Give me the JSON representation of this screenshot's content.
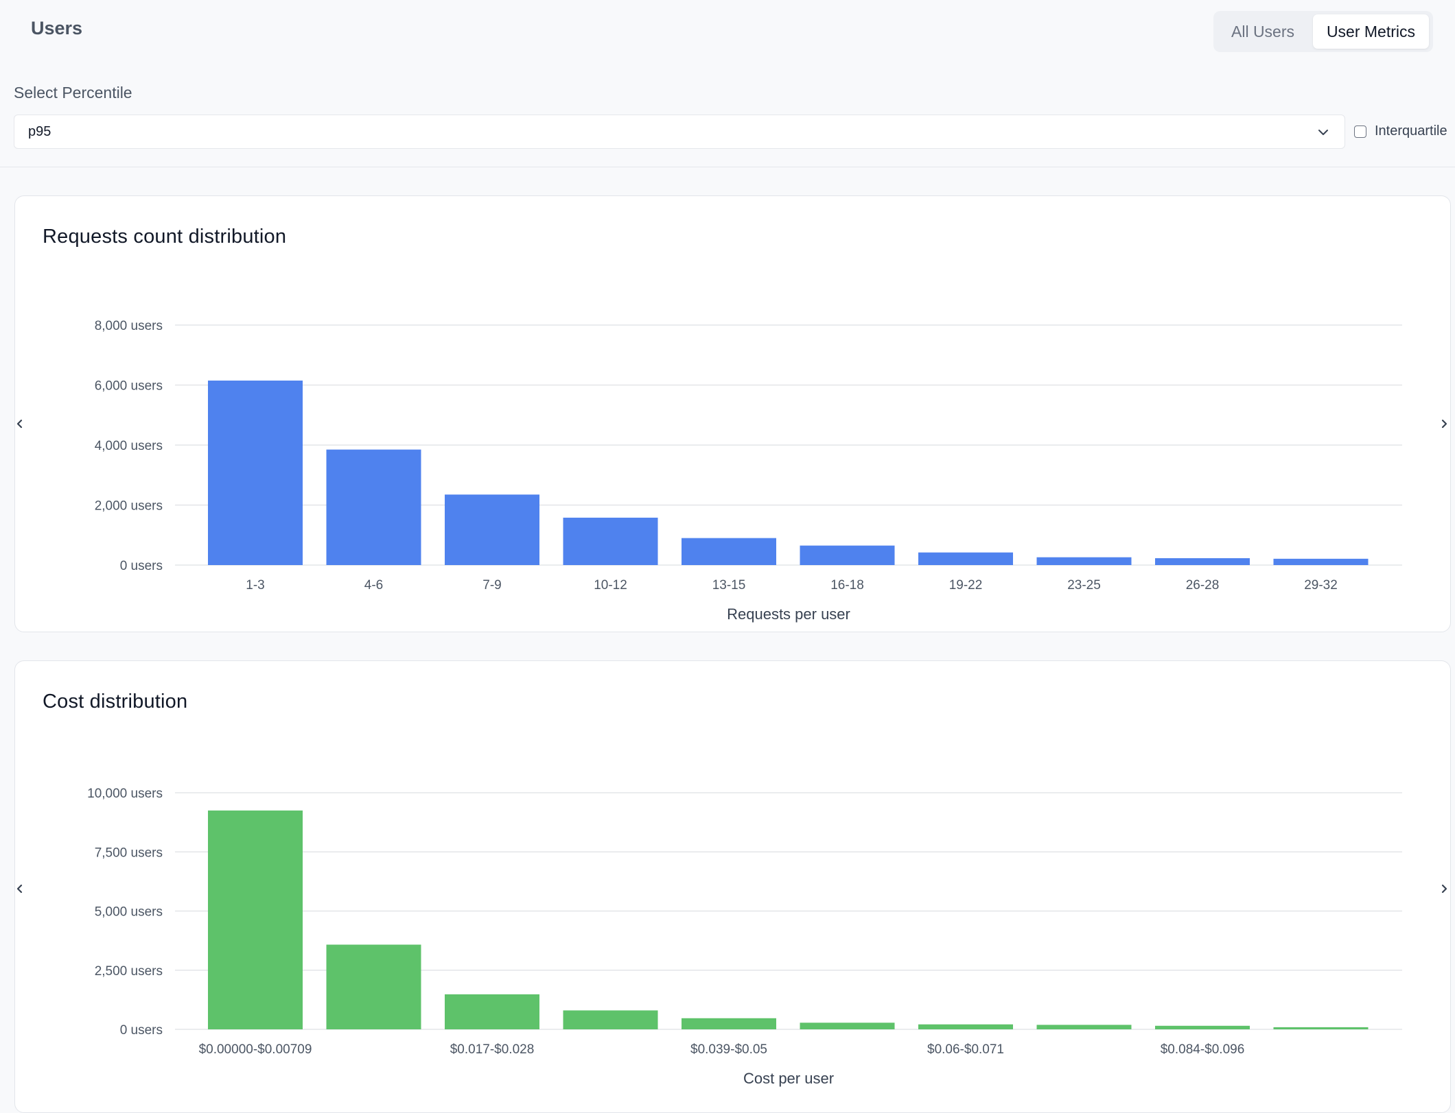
{
  "header": {
    "title": "Users"
  },
  "tabs": [
    {
      "label": "All Users",
      "active": false
    },
    {
      "label": "User Metrics",
      "active": true
    }
  ],
  "percentile": {
    "label": "Select Percentile",
    "value": "p95",
    "chevron_icon": "chevron-down-icon"
  },
  "interquartile": {
    "label": "Interquartile",
    "checked": false
  },
  "charts": {
    "requests": {
      "title": "Requests count distribution",
      "nav_icons": [
        "chevron-left-icon",
        "chevron-right-icon"
      ]
    },
    "cost": {
      "title": "Cost distribution",
      "nav_icons": [
        "chevron-left-icon",
        "chevron-right-icon"
      ]
    }
  },
  "chart_data": [
    {
      "type": "bar",
      "title": "Requests count distribution",
      "xlabel": "Requests per user",
      "ylabel": "",
      "categories": [
        "1-3",
        "4-6",
        "7-9",
        "10-12",
        "13-15",
        "16-18",
        "19-22",
        "23-25",
        "26-28",
        "29-32"
      ],
      "values": [
        6150,
        3850,
        2350,
        1580,
        900,
        650,
        420,
        260,
        230,
        210
      ],
      "ylim": [
        0,
        8000
      ],
      "yticks": [
        0,
        2000,
        4000,
        6000,
        8000
      ],
      "ytick_labels": [
        "0 users",
        "2,000 users",
        "4,000 users",
        "6,000 users",
        "8,000 users"
      ],
      "color": "#4f82ee",
      "grid": true
    },
    {
      "type": "bar",
      "title": "Cost distribution",
      "xlabel": "Cost per user",
      "ylabel": "",
      "categories": [
        "$0.00000-$0.00709",
        "",
        "$0.017-$0.028",
        "",
        "$0.039-$0.05",
        "",
        "$0.06-$0.071",
        "",
        "$0.084-$0.096",
        ""
      ],
      "values": [
        9250,
        3580,
        1480,
        800,
        470,
        280,
        210,
        190,
        150,
        90
      ],
      "ylim": [
        0,
        10000
      ],
      "yticks": [
        0,
        2500,
        5000,
        7500,
        10000
      ],
      "ytick_labels": [
        "0 users",
        "2,500 users",
        "5,000 users",
        "7,500 users",
        "10,000 users"
      ],
      "color": "#5ec26a",
      "grid": true
    }
  ]
}
